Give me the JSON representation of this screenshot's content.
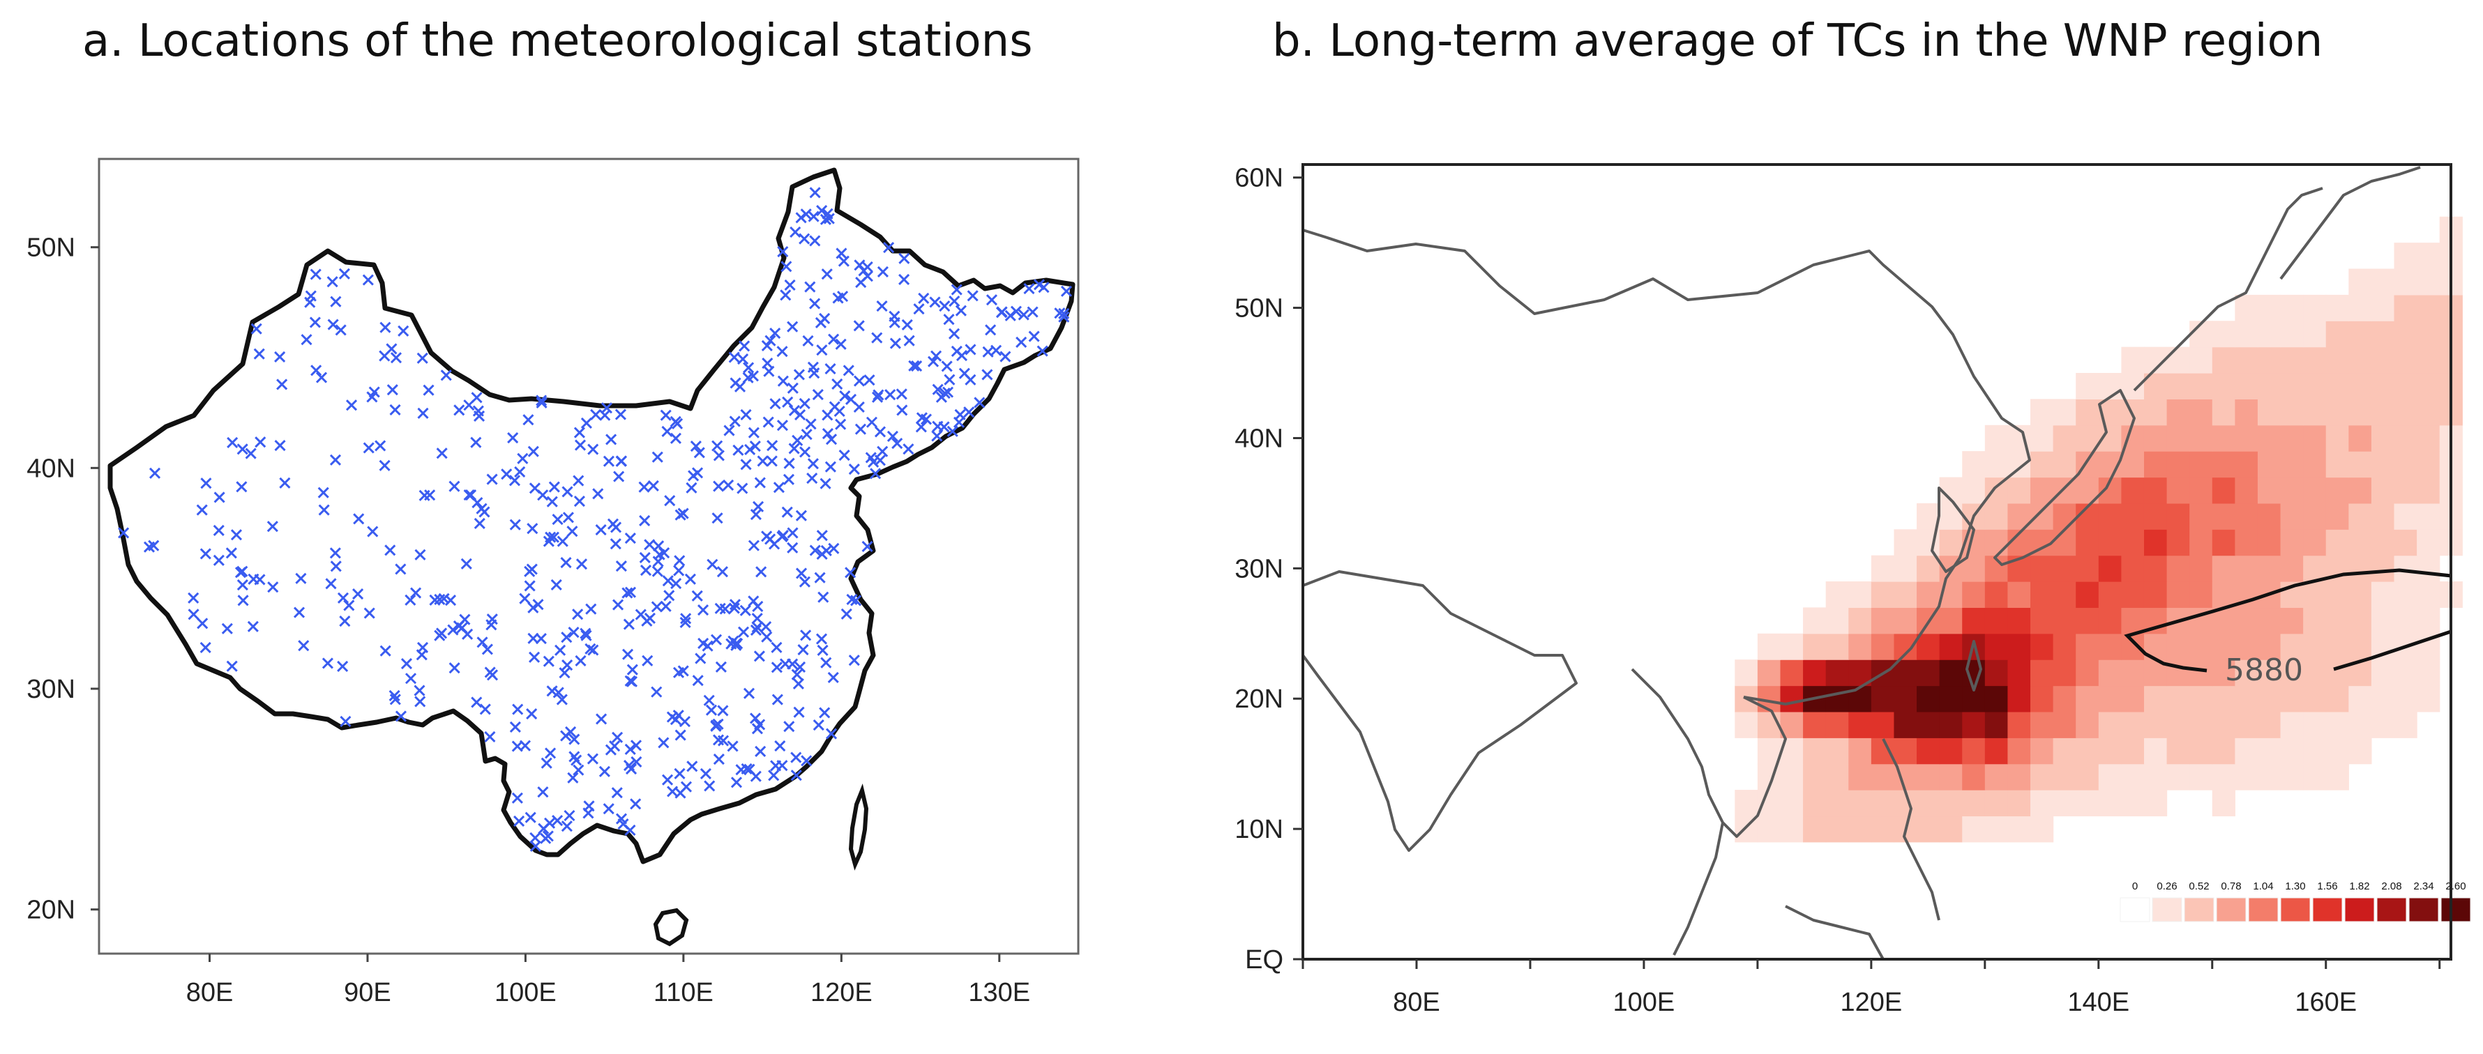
{
  "panel_a": {
    "title": "a. Locations of the meteorological stations",
    "lat_ticks": [
      "20N",
      "30N",
      "40N",
      "50N"
    ],
    "lon_ticks": [
      "80E",
      "90E",
      "100E",
      "110E",
      "120E",
      "130E"
    ],
    "lat_range": [
      18,
      54
    ],
    "lon_range": [
      73,
      135
    ],
    "station_marker": "x",
    "station_color": "#3a5cf0"
  },
  "panel_b": {
    "title": "b. Long-term average of TCs in the WNP region",
    "lat_ticks": [
      "EQ",
      "10N",
      "20N",
      "30N",
      "40N",
      "50N",
      "60N"
    ],
    "lon_ticks": [
      "80E",
      "100E",
      "120E",
      "140E",
      "160E"
    ],
    "lat_range": [
      0,
      61
    ],
    "lon_range": [
      70,
      171
    ],
    "contour_label": "5880",
    "colorbar_ticks": [
      "0",
      "0.26",
      "0.52",
      "0.78",
      "1.04",
      "1.30",
      "1.56",
      "1.82",
      "2.08",
      "2.34",
      "2.60"
    ],
    "colorbar_colors": [
      "#ffffff",
      "#fde3dc",
      "#fbc5b6",
      "#f8a190",
      "#f37d6a",
      "#ec5746",
      "#e0332a",
      "#cc1c1c",
      "#a81515",
      "#830f0f",
      "#5c0707"
    ]
  }
}
